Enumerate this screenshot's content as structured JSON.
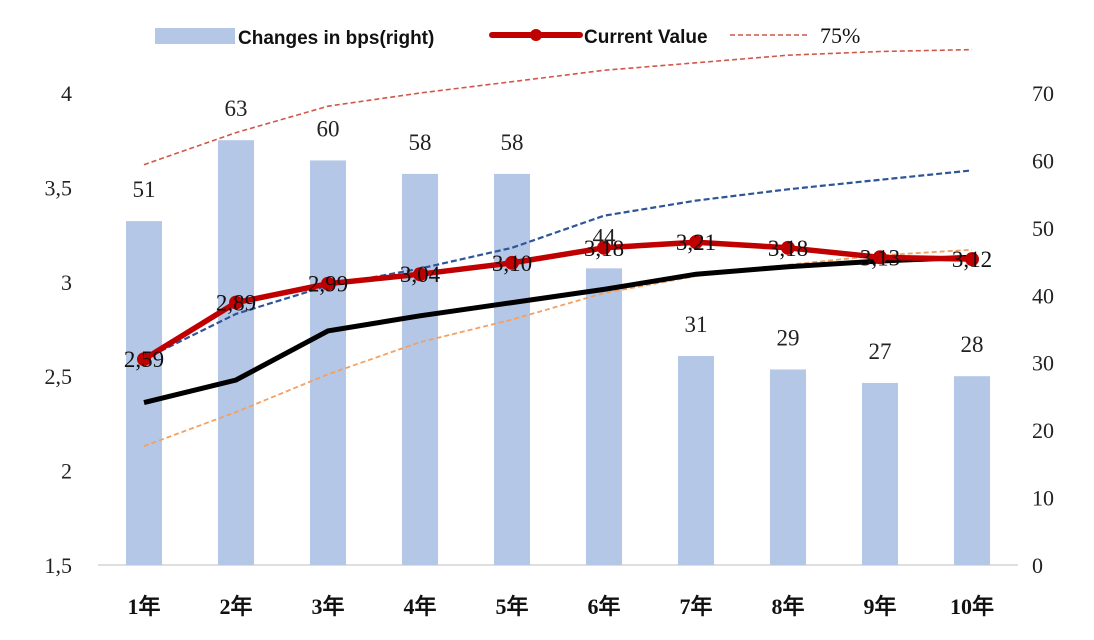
{
  "chart_data": {
    "type": "bar-line",
    "categories": [
      "1年",
      "2年",
      "3年",
      "4年",
      "5年",
      "6年",
      "7年",
      "8年",
      "9年",
      "10年"
    ],
    "left_axis": {
      "ylim": [
        1.5,
        4
      ],
      "ticks": [
        "1,5",
        "2",
        "2,5",
        "3",
        "3,5",
        "4"
      ]
    },
    "right_axis": {
      "ylim": [
        0,
        70
      ],
      "ticks": [
        "0",
        "10",
        "20",
        "30",
        "40",
        "50",
        "60",
        "70"
      ]
    },
    "bars": {
      "name": "Changes in bps(right)",
      "values": [
        51,
        63,
        60,
        58,
        58,
        44,
        31,
        29,
        27,
        28
      ],
      "labels": [
        "51",
        "63",
        "60",
        "58",
        "58",
        "44",
        "31",
        "29",
        "27",
        "28"
      ],
      "color": "#b4c7e7"
    },
    "current": {
      "name": "Current Value",
      "values": [
        2.59,
        2.89,
        2.99,
        3.04,
        3.1,
        3.18,
        3.21,
        3.18,
        3.13,
        3.12
      ],
      "labels": [
        "2,59",
        "2,89",
        "2,99",
        "3,04",
        "3,10",
        "3,18",
        "3,21",
        "3,18",
        "3,13",
        "3,12"
      ],
      "color": "#c00000"
    },
    "p75": {
      "name": "75%",
      "values": [
        3.62,
        3.79,
        3.93,
        4.0,
        4.06,
        4.12,
        4.16,
        4.2,
        4.22,
        4.23
      ],
      "color": "#d0574a"
    },
    "blue_dashed": {
      "values": [
        2.59,
        2.83,
        2.98,
        3.07,
        3.18,
        3.35,
        3.43,
        3.49,
        3.54,
        3.59
      ],
      "color": "#2e5597"
    },
    "orange_dashed": {
      "values": [
        2.13,
        2.31,
        2.51,
        2.68,
        2.8,
        2.94,
        3.03,
        3.09,
        3.14,
        3.17
      ],
      "color": "#f4a062"
    },
    "black_line": {
      "values": [
        2.36,
        2.48,
        2.74,
        2.82,
        2.89,
        2.96,
        3.04,
        3.08,
        3.11,
        3.13
      ],
      "color": "#000000"
    },
    "grid": false,
    "legend_position": "top"
  }
}
